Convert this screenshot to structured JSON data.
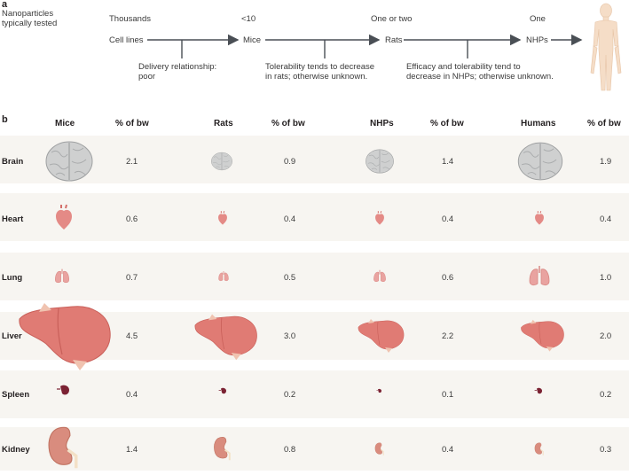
{
  "panel_a": {
    "letter": "a",
    "row_label": "Nanoparticles typically tested",
    "row_label_line1": "Nanoparticles",
    "row_label_line2": "typically tested",
    "counts": [
      "Thousands",
      "<10",
      "One or two",
      "One"
    ],
    "stages": [
      "Cell lines",
      "Mice",
      "Rats",
      "NHPs"
    ],
    "notes": [
      {
        "line1": "Delivery relationship:",
        "line2": "poor"
      },
      {
        "line1": "Tolerability tends to decrease",
        "line2": "in rats; otherwise unknown."
      },
      {
        "line1": "Efficacy and tolerability tend to",
        "line2": "decrease in NHPs; otherwise unknown."
      }
    ]
  },
  "panel_b": {
    "letter": "b",
    "species": [
      "Mice",
      "Rats",
      "NHPs",
      "Humans"
    ],
    "value_header": "% of bw",
    "organs": [
      {
        "name": "Brain",
        "values": [
          "2.1",
          "0.9",
          "1.4",
          "1.9"
        ]
      },
      {
        "name": "Heart",
        "values": [
          "0.6",
          "0.4",
          "0.4",
          "0.4"
        ]
      },
      {
        "name": "Lung",
        "values": [
          "0.7",
          "0.5",
          "0.6",
          "1.0"
        ]
      },
      {
        "name": "Liver",
        "values": [
          "4.5",
          "3.0",
          "2.2",
          "2.0"
        ]
      },
      {
        "name": "Spleen",
        "values": [
          "0.4",
          "0.2",
          "0.1",
          "0.2"
        ]
      },
      {
        "name": "Kidney",
        "values": [
          "1.4",
          "0.8",
          "0.4",
          "0.3"
        ]
      }
    ]
  },
  "colors": {
    "arrow": "#4a4f55",
    "organ_pink": "#e48a86",
    "brain_gray": "#cfd0d0",
    "spleen": "#7b2233",
    "kidney": "#d98c7e",
    "human_skin": "#f5ddc7",
    "shade": "#f7f5f1"
  }
}
